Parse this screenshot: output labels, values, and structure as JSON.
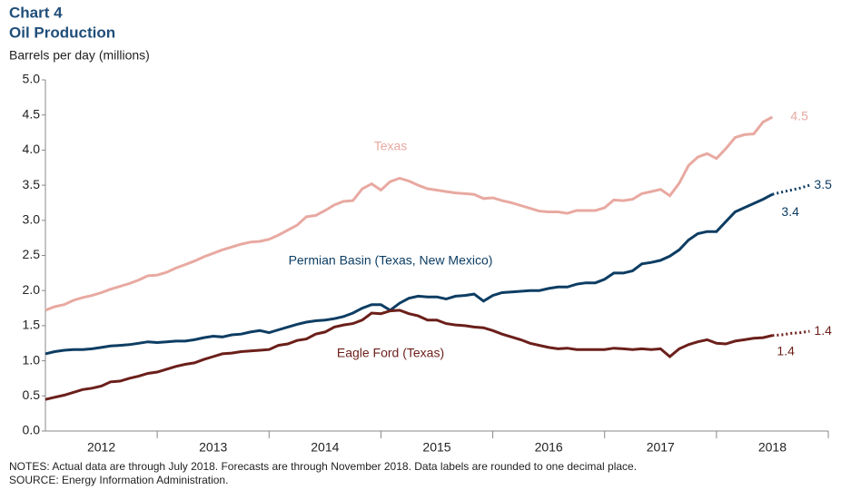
{
  "chart_data": {
    "type": "line",
    "title": "Chart 4",
    "subtitle": "Oil Production",
    "y_label": "Barrels per day (millions)",
    "notes": [
      "NOTES: Actual data are through July 2018. Forecasts are through November 2018. Data labels are rounded to one decimal place.",
      "SOURCE: Energy Information  Administration."
    ],
    "xlim": [
      2012,
      2019
    ],
    "xticks": [
      {
        "value": 2012.5,
        "label": "2012"
      },
      {
        "value": 2013.5,
        "label": "2013"
      },
      {
        "value": 2014.5,
        "label": "2014"
      },
      {
        "value": 2015.5,
        "label": "2015"
      },
      {
        "value": 2016.5,
        "label": "2016"
      },
      {
        "value": 2017.5,
        "label": "2017"
      },
      {
        "value": 2018.5,
        "label": "2018"
      }
    ],
    "ylim": [
      0,
      5
    ],
    "yticks": [
      {
        "value": 0,
        "label": "0.0"
      },
      0.5,
      {
        "value": 1,
        "label": "1.0"
      },
      1.5,
      {
        "value": 2,
        "label": "2.0"
      },
      2.5,
      {
        "value": 3,
        "label": "3.0"
      },
      3.5,
      {
        "value": 4,
        "label": "4.0"
      },
      4.5,
      {
        "value": 5,
        "label": "5.0"
      }
    ],
    "grid": false,
    "x": [
      2012.0,
      2012.083,
      2012.167,
      2012.25,
      2012.333,
      2012.417,
      2012.5,
      2012.583,
      2012.667,
      2012.75,
      2012.833,
      2012.917,
      2013.0,
      2013.083,
      2013.167,
      2013.25,
      2013.333,
      2013.417,
      2013.5,
      2013.583,
      2013.667,
      2013.75,
      2013.833,
      2013.917,
      2014.0,
      2014.083,
      2014.167,
      2014.25,
      2014.333,
      2014.417,
      2014.5,
      2014.583,
      2014.667,
      2014.75,
      2014.833,
      2014.917,
      2015.0,
      2015.083,
      2015.167,
      2015.25,
      2015.333,
      2015.417,
      2015.5,
      2015.583,
      2015.667,
      2015.75,
      2015.833,
      2015.917,
      2016.0,
      2016.083,
      2016.167,
      2016.25,
      2016.333,
      2016.417,
      2016.5,
      2016.583,
      2016.667,
      2016.75,
      2016.833,
      2016.917,
      2017.0,
      2017.083,
      2017.167,
      2017.25,
      2017.333,
      2017.417,
      2017.5,
      2017.583,
      2017.667,
      2017.75,
      2017.833,
      2017.917,
      2018.0,
      2018.083,
      2018.167,
      2018.25,
      2018.333,
      2018.417,
      2018.5
    ],
    "series": [
      {
        "name": "Texas",
        "color": "#e8a9a1",
        "values": [
          1.72,
          1.77,
          1.8,
          1.86,
          1.9,
          1.93,
          1.97,
          2.02,
          2.06,
          2.1,
          2.15,
          2.21,
          2.22,
          2.26,
          2.32,
          2.37,
          2.42,
          2.48,
          2.53,
          2.58,
          2.62,
          2.66,
          2.69,
          2.7,
          2.73,
          2.79,
          2.86,
          2.93,
          3.05,
          3.07,
          3.14,
          3.22,
          3.27,
          3.28,
          3.45,
          3.52,
          3.43,
          3.55,
          3.6,
          3.56,
          3.5,
          3.45,
          3.43,
          3.41,
          3.39,
          3.38,
          3.37,
          3.31,
          3.32,
          3.28,
          3.25,
          3.21,
          3.17,
          3.13,
          3.12,
          3.12,
          3.1,
          3.14,
          3.14,
          3.14,
          3.18,
          3.29,
          3.28,
          3.3,
          3.38,
          3.41,
          3.44,
          3.35,
          3.53,
          3.78,
          3.9,
          3.95,
          3.88,
          4.02,
          4.18,
          4.22,
          4.23,
          4.4,
          4.47
        ],
        "end_label": "4.5"
      },
      {
        "name": "Permian Basin (Texas, New Mexico)",
        "color": "#0d3d63",
        "values": [
          1.1,
          1.13,
          1.15,
          1.16,
          1.16,
          1.17,
          1.19,
          1.21,
          1.22,
          1.23,
          1.25,
          1.27,
          1.26,
          1.27,
          1.28,
          1.28,
          1.3,
          1.33,
          1.35,
          1.34,
          1.37,
          1.38,
          1.41,
          1.43,
          1.4,
          1.44,
          1.48,
          1.52,
          1.55,
          1.57,
          1.58,
          1.6,
          1.63,
          1.68,
          1.75,
          1.8,
          1.8,
          1.72,
          1.82,
          1.89,
          1.92,
          1.91,
          1.91,
          1.88,
          1.92,
          1.93,
          1.95,
          1.85,
          1.93,
          1.97,
          1.98,
          1.99,
          2.0,
          2.0,
          2.03,
          2.05,
          2.05,
          2.09,
          2.11,
          2.11,
          2.16,
          2.25,
          2.25,
          2.28,
          2.38,
          2.4,
          2.43,
          2.49,
          2.58,
          2.72,
          2.81,
          2.84,
          2.84,
          2.98,
          3.12,
          3.18,
          3.24,
          3.3,
          3.37
        ],
        "end_label": "3.4",
        "forecast_x": [
          2018.5,
          2018.583,
          2018.667,
          2018.75,
          2018.833
        ],
        "forecast": [
          3.37,
          3.4,
          3.43,
          3.46,
          3.5
        ],
        "forecast_label": "3.5"
      },
      {
        "name": "Eagle Ford (Texas)",
        "color": "#6b1f1a",
        "values": [
          0.45,
          0.48,
          0.51,
          0.55,
          0.59,
          0.61,
          0.64,
          0.7,
          0.71,
          0.75,
          0.78,
          0.82,
          0.84,
          0.88,
          0.92,
          0.95,
          0.97,
          1.02,
          1.06,
          1.1,
          1.11,
          1.13,
          1.14,
          1.15,
          1.16,
          1.22,
          1.24,
          1.29,
          1.31,
          1.38,
          1.41,
          1.48,
          1.51,
          1.53,
          1.58,
          1.68,
          1.67,
          1.71,
          1.72,
          1.67,
          1.64,
          1.58,
          1.58,
          1.53,
          1.51,
          1.5,
          1.48,
          1.47,
          1.43,
          1.38,
          1.34,
          1.3,
          1.25,
          1.22,
          1.19,
          1.17,
          1.18,
          1.16,
          1.16,
          1.16,
          1.16,
          1.18,
          1.17,
          1.16,
          1.17,
          1.16,
          1.17,
          1.06,
          1.17,
          1.23,
          1.27,
          1.3,
          1.25,
          1.24,
          1.28,
          1.3,
          1.32,
          1.33,
          1.36
        ],
        "end_label": "1.4",
        "forecast_x": [
          2018.5,
          2018.583,
          2018.667,
          2018.75,
          2018.833
        ],
        "forecast": [
          1.36,
          1.37,
          1.39,
          1.4,
          1.42
        ],
        "forecast_label": "1.4"
      }
    ]
  }
}
